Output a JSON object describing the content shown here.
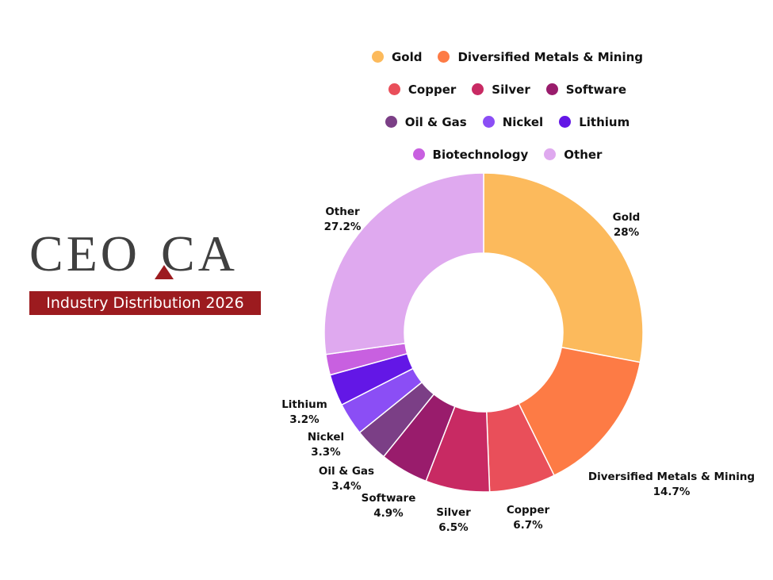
{
  "logo": {
    "text": "CEO.CA",
    "left_text": "CEO",
    "right_text": "CA",
    "banner": "Industry Distribution 2026",
    "brand_color": "#9c1b1f",
    "text_color": "#404040"
  },
  "chart_data": {
    "type": "pie",
    "variant": "donut",
    "start": "top, clockwise",
    "legend_placement": "top",
    "slices": [
      {
        "label": "Gold",
        "value": 28,
        "value_text": "28%",
        "color": "#fcba5c"
      },
      {
        "label": "Diversified Metals & Mining",
        "value": 14.7,
        "value_text": "14.7%",
        "color": "#fd7b45"
      },
      {
        "label": "Copper",
        "value": 6.7,
        "value_text": "6.7%",
        "color": "#e94f5a"
      },
      {
        "label": "Silver",
        "value": 6.5,
        "value_text": "6.5%",
        "color": "#c82a63"
      },
      {
        "label": "Software",
        "value": 4.9,
        "value_text": "4.9%",
        "color": "#991c6c"
      },
      {
        "label": "Oil & Gas",
        "value": 3.4,
        "value_text": "3.4%",
        "color": "#7b3f86"
      },
      {
        "label": "Nickel",
        "value": 3.3,
        "value_text": "3.3%",
        "color": "#8b4ef5"
      },
      {
        "label": "Lithium",
        "value": 3.2,
        "value_text": "3.2%",
        "color": "#6317e6"
      },
      {
        "label": "Biotechnology",
        "value": 2.1,
        "value_text": "",
        "color": "#c860e0"
      },
      {
        "label": "Other",
        "value": 27.2,
        "value_text": "27.2%",
        "color": "#dfa9ef"
      }
    ],
    "legend_rows": [
      [
        "Gold",
        "Diversified Metals & Mining"
      ],
      [
        "Copper",
        "Silver",
        "Software"
      ],
      [
        "Oil & Gas",
        "Nickel",
        "Lithium"
      ],
      [
        "Biotechnology",
        "Other"
      ]
    ]
  }
}
